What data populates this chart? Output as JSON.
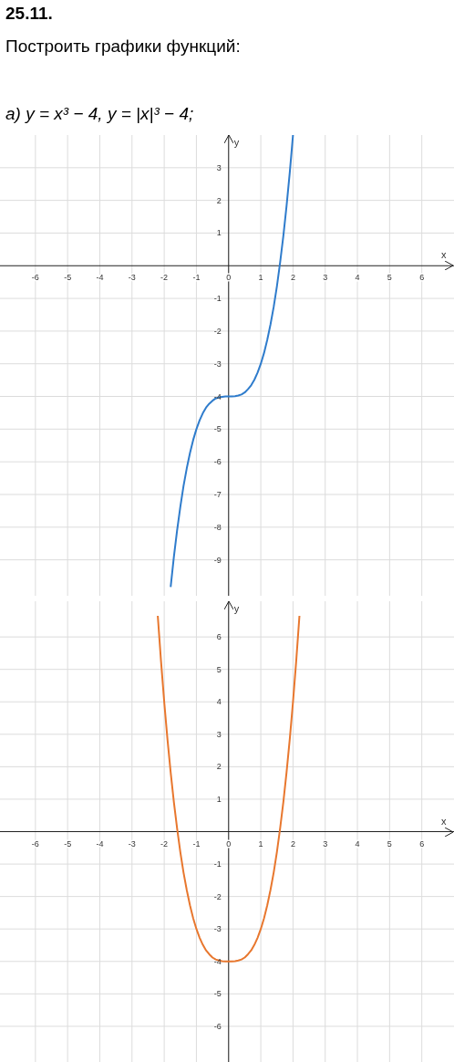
{
  "chart_data": [
    {
      "type": "line",
      "title": "25.11.",
      "subtitle": "Построить графики функций:",
      "annotations": [
        "а) y = x³ − 4,  y = |x|³ − 4;"
      ],
      "xlabel": "x",
      "ylabel": "y",
      "grid": true,
      "xlim": [
        -7.1,
        7.0
      ],
      "ylim": [
        -10.1,
        4.0
      ],
      "xticks": [
        -6,
        -5,
        -4,
        -3,
        -2,
        -1,
        0,
        1,
        2,
        3,
        4,
        5,
        6
      ],
      "yticks": [
        -9,
        -8,
        -7,
        -6,
        -5,
        -4,
        -3,
        -2,
        -1,
        1,
        2,
        3
      ],
      "series": [
        {
          "color": "#2f7ccc",
          "x": [
            -1.8,
            -1.7,
            -1.6,
            -1.5,
            -1.4,
            -1.3,
            -1.2,
            -1.1,
            -1.0,
            -0.9,
            -0.8,
            -0.7,
            -0.6,
            -0.5,
            -0.4,
            -0.3,
            -0.2,
            -0.1,
            0,
            0.1,
            0.2,
            0.3,
            0.4,
            0.5,
            0.6,
            0.7,
            0.8,
            0.9,
            1.0,
            1.1,
            1.2,
            1.3,
            1.4,
            1.5,
            1.6,
            1.7,
            1.8,
            1.9,
            2.0
          ],
          "values": [
            -9.83,
            -8.91,
            -8.1,
            -7.38,
            -6.74,
            -6.2,
            -5.73,
            -5.33,
            -5,
            -4.73,
            -4.51,
            -4.34,
            -4.22,
            -4.13,
            -4.06,
            -4.03,
            -4.01,
            -4,
            -4,
            -4,
            -3.99,
            -3.97,
            -3.94,
            -3.88,
            -3.78,
            -3.66,
            -3.49,
            -3.27,
            -3,
            -2.67,
            -2.27,
            -1.8,
            -1.26,
            -0.63,
            0.1,
            0.91,
            1.83,
            2.86,
            4
          ]
        }
      ]
    },
    {
      "type": "line",
      "xlabel": "x",
      "ylabel": "y",
      "grid": true,
      "xlim": [
        -7.1,
        7.0
      ],
      "ylim": [
        -7.1,
        7.1
      ],
      "xticks": [
        -6,
        -5,
        -4,
        -3,
        -2,
        -1,
        0,
        1,
        2,
        3,
        4,
        5,
        6
      ],
      "yticks": [
        -6,
        -5,
        -4,
        -3,
        -2,
        -1,
        1,
        2,
        3,
        4,
        5,
        6
      ],
      "series": [
        {
          "color": "#e8772e",
          "x": [
            -2.2,
            -2.1,
            -2.0,
            -1.9,
            -1.8,
            -1.7,
            -1.6,
            -1.5,
            -1.4,
            -1.3,
            -1.2,
            -1.1,
            -1.0,
            -0.9,
            -0.8,
            -0.7,
            -0.6,
            -0.5,
            -0.4,
            -0.3,
            -0.2,
            -0.1,
            0,
            0.1,
            0.2,
            0.3,
            0.4,
            0.5,
            0.6,
            0.7,
            0.8,
            0.9,
            1.0,
            1.1,
            1.2,
            1.3,
            1.4,
            1.5,
            1.6,
            1.7,
            1.8,
            1.9,
            2.0,
            2.1,
            2.2
          ],
          "values": [
            6.65,
            5.26,
            4,
            2.86,
            1.83,
            0.91,
            0.1,
            -0.63,
            -1.26,
            -1.8,
            -2.27,
            -2.67,
            -3,
            -3.27,
            -3.49,
            -3.66,
            -3.78,
            -3.88,
            -3.94,
            -3.97,
            -3.99,
            -4,
            -4,
            -4,
            -3.99,
            -3.97,
            -3.94,
            -3.88,
            -3.78,
            -3.66,
            -3.49,
            -3.27,
            -3,
            -2.67,
            -2.27,
            -1.8,
            -1.26,
            -0.63,
            0.1,
            0.91,
            1.83,
            2.86,
            4,
            5.26,
            6.65
          ]
        }
      ]
    }
  ]
}
